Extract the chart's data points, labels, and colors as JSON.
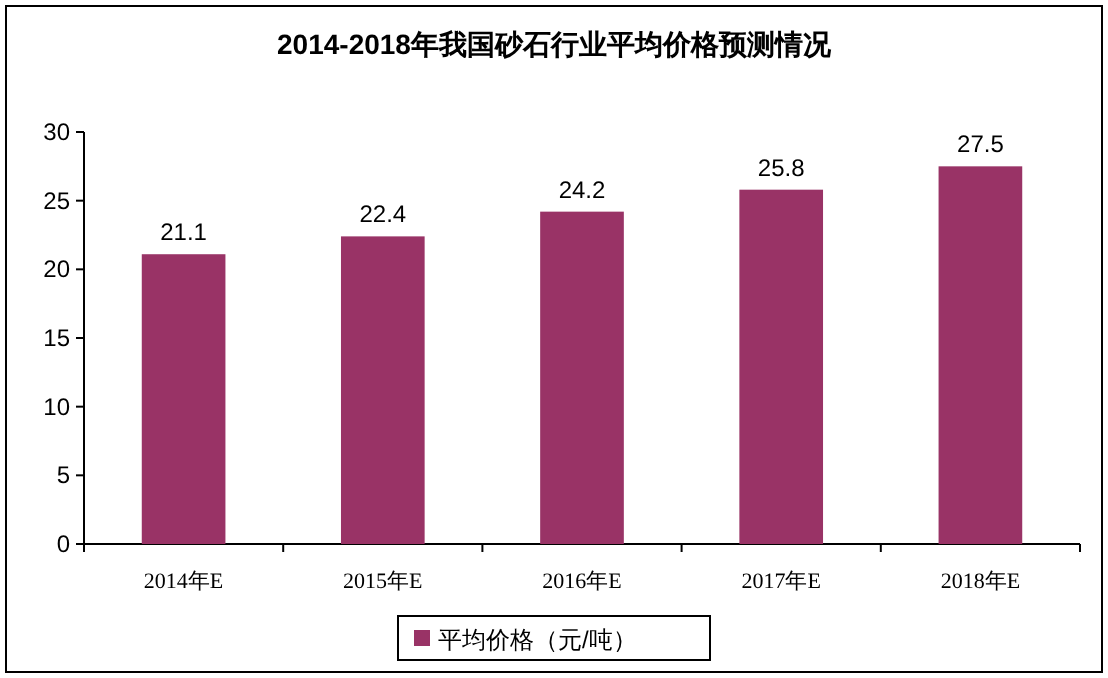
{
  "chart_data": {
    "type": "bar",
    "title": "2014-2018年我国砂石行业平均价格预测情况",
    "categories": [
      "2014年E",
      "2015年E",
      "2016年E",
      "2017年E",
      "2018年E"
    ],
    "series": [
      {
        "name": "平均价格（元/吨）",
        "color": "#993366",
        "values": [
          21.1,
          22.4,
          24.2,
          25.8,
          27.5
        ]
      }
    ],
    "ylim": [
      0,
      30
    ],
    "yticks": [
      0,
      5,
      10,
      15,
      20,
      25,
      30
    ],
    "data_labels": true,
    "legend": "bottom"
  }
}
